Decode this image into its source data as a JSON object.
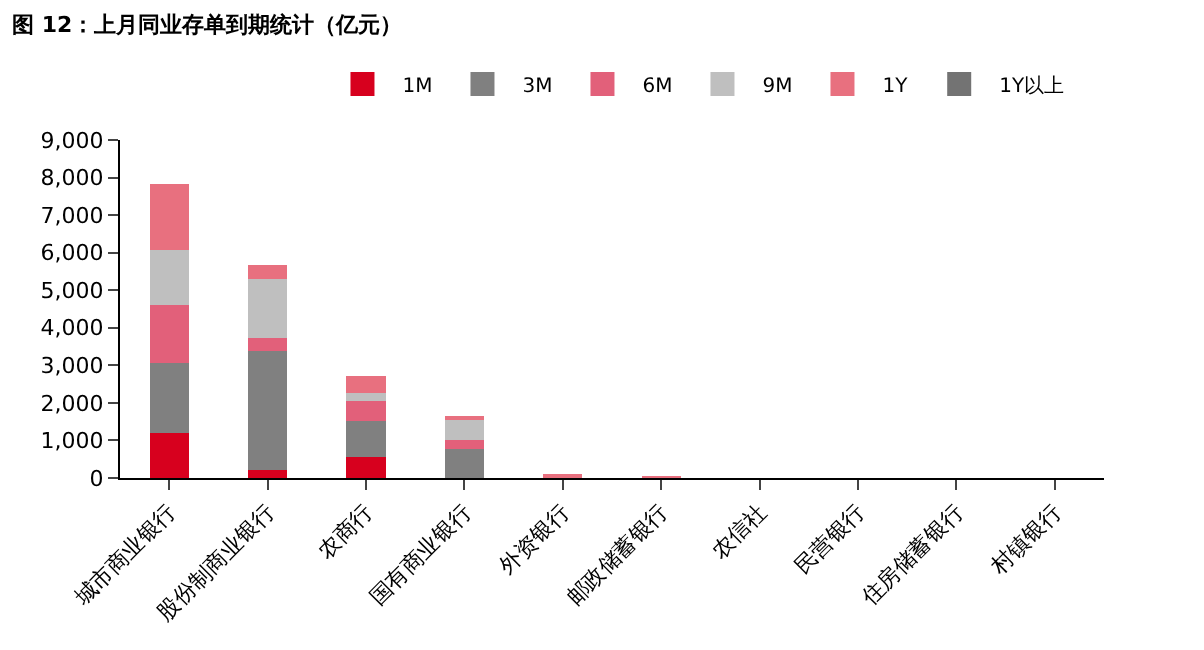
{
  "chart_data": {
    "type": "bar",
    "stacked": true,
    "title": "图 12：上月同业存单到期统计（亿元）",
    "categories": [
      "城市商业银行",
      "股份制商业银行",
      "农商行",
      "国有商业银行",
      "外资银行",
      "邮政储蓄银行",
      "农信社",
      "民营银行",
      "住房储蓄银行",
      "村镇银行"
    ],
    "series": [
      {
        "name": "1M",
        "color": "#d7001e",
        "values": [
          1200,
          200,
          560,
          0,
          0,
          0,
          0,
          0,
          0,
          0
        ]
      },
      {
        "name": "3M",
        "color": "#808080",
        "values": [
          1850,
          3180,
          960,
          780,
          40,
          10,
          0,
          0,
          0,
          0
        ]
      },
      {
        "name": "6M",
        "color": "#e2607a",
        "values": [
          1550,
          350,
          540,
          220,
          0,
          20,
          0,
          0,
          0,
          0
        ]
      },
      {
        "name": "9M",
        "color": "#bfbfbf",
        "values": [
          1480,
          1570,
          200,
          570,
          0,
          0,
          0,
          0,
          0,
          0
        ]
      },
      {
        "name": "1Y",
        "color": "#e8707f",
        "values": [
          1750,
          360,
          450,
          60,
          20,
          20,
          0,
          0,
          0,
          0
        ]
      },
      {
        "name": "1Y以上",
        "color": "#737373",
        "values": [
          0,
          0,
          0,
          0,
          0,
          0,
          0,
          0,
          0,
          0
        ]
      }
    ],
    "ylim": [
      0,
      9000
    ],
    "yticks": [
      {
        "value": 0,
        "label": "0"
      },
      {
        "value": 1000,
        "label": "1,000"
      },
      {
        "value": 2000,
        "label": "2,000"
      },
      {
        "value": 3000,
        "label": "3,000"
      },
      {
        "value": 4000,
        "label": "4,000"
      },
      {
        "value": 5000,
        "label": "5,000"
      },
      {
        "value": 6000,
        "label": "6,000"
      },
      {
        "value": 7000,
        "label": "7,000"
      },
      {
        "value": 8000,
        "label": "8,000"
      },
      {
        "value": 9000,
        "label": "9,000"
      }
    ],
    "legend": "top right"
  }
}
